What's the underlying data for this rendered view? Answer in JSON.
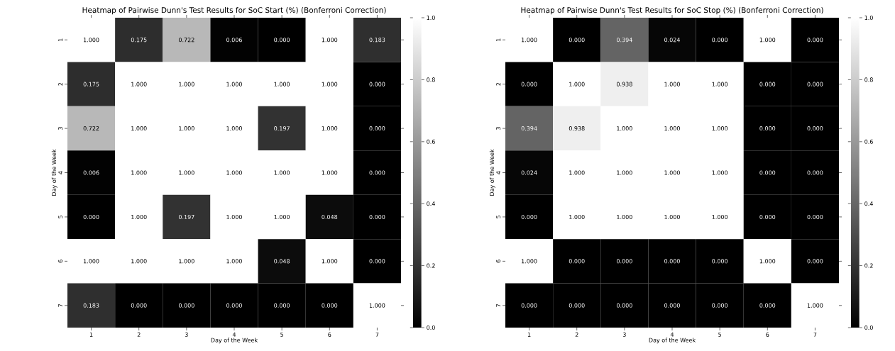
{
  "chart_data": [
    {
      "type": "heatmap",
      "title": "Heatmap of Pairwise Dunn's Test Results for SoC Start (%) (Bonferroni Correction)",
      "xlabel": "Day of the Week",
      "ylabel": "Day of the Week",
      "categories": [
        "1",
        "2",
        "3",
        "4",
        "5",
        "6",
        "7"
      ],
      "y_categories": [
        "1",
        "2",
        "3",
        "4",
        "5",
        "6",
        "7"
      ],
      "cells": [
        [
          1.0,
          0.175,
          0.722,
          0.006,
          0.0,
          1.0,
          0.183
        ],
        [
          0.175,
          1.0,
          1.0,
          1.0,
          1.0,
          1.0,
          0.0
        ],
        [
          0.722,
          1.0,
          1.0,
          1.0,
          0.197,
          1.0,
          0.0
        ],
        [
          0.006,
          1.0,
          1.0,
          1.0,
          1.0,
          1.0,
          0.0
        ],
        [
          0.0,
          1.0,
          0.197,
          1.0,
          1.0,
          0.048,
          0.0
        ],
        [
          1.0,
          1.0,
          1.0,
          1.0,
          0.048,
          1.0,
          0.0
        ],
        [
          0.183,
          0.0,
          0.0,
          0.0,
          0.0,
          0.0,
          1.0
        ]
      ],
      "cell_labels": [
        [
          "1.000",
          "0.175",
          "0.722",
          "0.006",
          "0.000",
          "1.000",
          "0.183"
        ],
        [
          "0.175",
          "1.000",
          "1.000",
          "1.000",
          "1.000",
          "1.000",
          "0.000"
        ],
        [
          "0.722",
          "1.000",
          "1.000",
          "1.000",
          "0.197",
          "1.000",
          "0.000"
        ],
        [
          "0.006",
          "1.000",
          "1.000",
          "1.000",
          "1.000",
          "1.000",
          "0.000"
        ],
        [
          "0.000",
          "1.000",
          "0.197",
          "1.000",
          "1.000",
          "0.048",
          "0.000"
        ],
        [
          "1.000",
          "1.000",
          "1.000",
          "1.000",
          "0.048",
          "1.000",
          "0.000"
        ],
        [
          "0.183",
          "0.000",
          "0.000",
          "0.000",
          "0.000",
          "0.000",
          "1.000"
        ]
      ],
      "clim": [
        0,
        1
      ],
      "cticks": [
        {
          "value": 0,
          "label": "0.0"
        },
        {
          "value": 0.2,
          "label": "0.2"
        },
        {
          "value": 0.4,
          "label": "0.4"
        },
        {
          "value": 0.6,
          "label": "0.6"
        },
        {
          "value": 0.8,
          "label": "0.8"
        },
        {
          "value": 1,
          "label": "1.0"
        }
      ]
    },
    {
      "type": "heatmap",
      "title": "Heatmap of Pairwise Dunn's Test Results for SoC Stop (%) (Bonferroni Correction)",
      "xlabel": "Day of the Week",
      "ylabel": "Day of the Week",
      "categories": [
        "1",
        "2",
        "3",
        "4",
        "5",
        "6",
        "7"
      ],
      "y_categories": [
        "1",
        "2",
        "3",
        "4",
        "5",
        "6",
        "7"
      ],
      "cells": [
        [
          1.0,
          0.0,
          0.394,
          0.024,
          0.0,
          1.0,
          0.0
        ],
        [
          0.0,
          1.0,
          0.938,
          1.0,
          1.0,
          0.0,
          0.0
        ],
        [
          0.394,
          0.938,
          1.0,
          1.0,
          1.0,
          0.0,
          0.0
        ],
        [
          0.024,
          1.0,
          1.0,
          1.0,
          1.0,
          0.0,
          0.0
        ],
        [
          0.0,
          1.0,
          1.0,
          1.0,
          1.0,
          0.0,
          0.0
        ],
        [
          1.0,
          0.0,
          0.0,
          0.0,
          0.0,
          1.0,
          0.0
        ],
        [
          0.0,
          0.0,
          0.0,
          0.0,
          0.0,
          0.0,
          1.0
        ]
      ],
      "cell_labels": [
        [
          "1.000",
          "0.000",
          "0.394",
          "0.024",
          "0.000",
          "1.000",
          "0.000"
        ],
        [
          "0.000",
          "1.000",
          "0.938",
          "1.000",
          "1.000",
          "0.000",
          "0.000"
        ],
        [
          "0.394",
          "0.938",
          "1.000",
          "1.000",
          "1.000",
          "0.000",
          "0.000"
        ],
        [
          "0.024",
          "1.000",
          "1.000",
          "1.000",
          "1.000",
          "0.000",
          "0.000"
        ],
        [
          "0.000",
          "1.000",
          "1.000",
          "1.000",
          "1.000",
          "0.000",
          "0.000"
        ],
        [
          "1.000",
          "0.000",
          "0.000",
          "0.000",
          "0.000",
          "1.000",
          "0.000"
        ],
        [
          "0.000",
          "0.000",
          "0.000",
          "0.000",
          "0.000",
          "0.000",
          "1.000"
        ]
      ],
      "clim": [
        0,
        1
      ],
      "cticks": [
        {
          "value": 0,
          "label": "0.0"
        },
        {
          "value": 0.2,
          "label": "0.2"
        },
        {
          "value": 0.4,
          "label": "0.4"
        },
        {
          "value": 0.6,
          "label": "0.6"
        },
        {
          "value": 0.8,
          "label": "0.8"
        },
        {
          "value": 1,
          "label": "1.0"
        }
      ]
    }
  ]
}
